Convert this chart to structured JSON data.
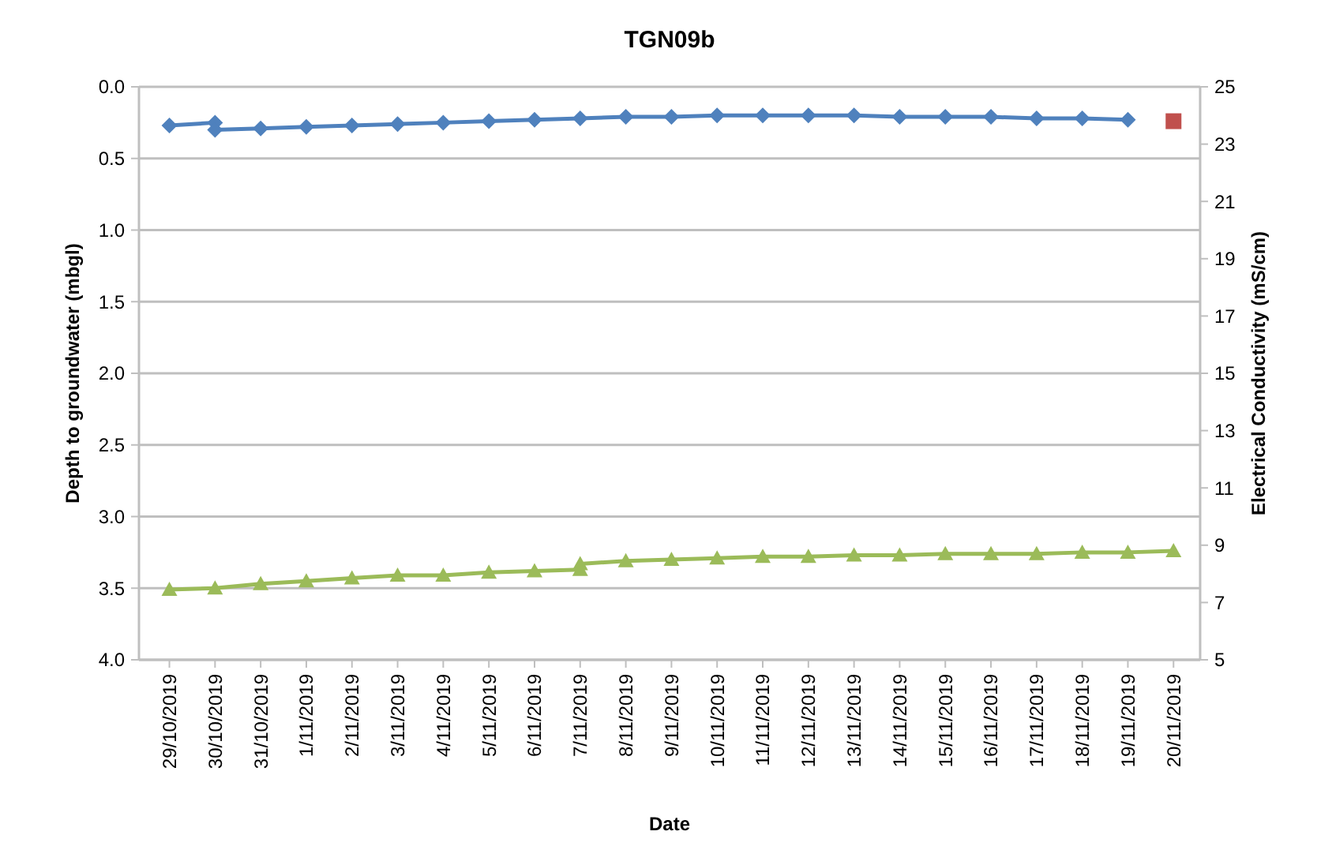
{
  "chart_data": {
    "type": "line",
    "title": "TGN09b",
    "xlabel": "Date",
    "ylabel": "Depth to groundwater (mbgl)",
    "y2label": "Electrical Conductivity (mS/cm)",
    "xlim": [
      "2019-10-28T08:00",
      "2019-11-20T14:00"
    ],
    "xticks": [
      {
        "value": "2019-10-29",
        "label": "29/10/2019"
      },
      {
        "value": "2019-10-30",
        "label": "30/10/2019"
      },
      {
        "value": "2019-10-31",
        "label": "31/10/2019"
      },
      {
        "value": "2019-11-01",
        "label": "1/11/2019"
      },
      {
        "value": "2019-11-02",
        "label": "2/11/2019"
      },
      {
        "value": "2019-11-03",
        "label": "3/11/2019"
      },
      {
        "value": "2019-11-04",
        "label": "4/11/2019"
      },
      {
        "value": "2019-11-05",
        "label": "5/11/2019"
      },
      {
        "value": "2019-11-06",
        "label": "6/11/2019"
      },
      {
        "value": "2019-11-07",
        "label": "7/11/2019"
      },
      {
        "value": "2019-11-08",
        "label": "8/11/2019"
      },
      {
        "value": "2019-11-09",
        "label": "9/11/2019"
      },
      {
        "value": "2019-11-10",
        "label": "10/11/2019"
      },
      {
        "value": "2019-11-11",
        "label": "11/11/2019"
      },
      {
        "value": "2019-11-12",
        "label": "12/11/2019"
      },
      {
        "value": "2019-11-13",
        "label": "13/11/2019"
      },
      {
        "value": "2019-11-14",
        "label": "14/11/2019"
      },
      {
        "value": "2019-11-15",
        "label": "15/11/2019"
      },
      {
        "value": "2019-11-16",
        "label": "16/11/2019"
      },
      {
        "value": "2019-11-17",
        "label": "17/11/2019"
      },
      {
        "value": "2019-11-18",
        "label": "18/11/2019"
      },
      {
        "value": "2019-11-19",
        "label": "19/11/2019"
      },
      {
        "value": "2019-11-20",
        "label": "20/11/2019"
      }
    ],
    "ylim": [
      4,
      0
    ],
    "yticks": [
      {
        "value": 0,
        "label": "0.0"
      },
      {
        "value": 0.5,
        "label": "0.5"
      },
      {
        "value": 1,
        "label": "1.0"
      },
      {
        "value": 1.5,
        "label": "1.5"
      },
      {
        "value": 2,
        "label": "2.0"
      },
      {
        "value": 2.5,
        "label": "2.5"
      },
      {
        "value": 3,
        "label": "3.0"
      },
      {
        "value": 3.5,
        "label": "3.5"
      },
      {
        "value": 4,
        "label": "4.0"
      }
    ],
    "y2lim": [
      5,
      25
    ],
    "y2ticks": [
      5,
      7,
      9,
      11,
      13,
      15,
      17,
      19,
      21,
      23,
      25
    ],
    "grid": "y",
    "series": [
      {
        "color": "#4f81bd",
        "marker": "diamond",
        "x": [
          "2019-10-29",
          "2019-10-30",
          "2019-10-30",
          "2019-10-31",
          "2019-11-01",
          "2019-11-02",
          "2019-11-03",
          "2019-11-04",
          "2019-11-05",
          "2019-11-06",
          "2019-11-07",
          "2019-11-08",
          "2019-11-09",
          "2019-11-10",
          "2019-11-11",
          "2019-11-12",
          "2019-11-13",
          "2019-11-14",
          "2019-11-15",
          "2019-11-16",
          "2019-11-17",
          "2019-11-18",
          "2019-11-19"
        ],
        "values": [
          0.27,
          0.25,
          0.3,
          0.29,
          0.28,
          0.27,
          0.26,
          0.25,
          0.24,
          0.23,
          0.22,
          0.21,
          0.21,
          0.2,
          0.2,
          0.2,
          0.2,
          0.21,
          0.21,
          0.21,
          0.22,
          0.22,
          0.23
        ]
      },
      {
        "type": "scatter",
        "color": "#c0504d",
        "marker": "square",
        "x": [
          "2019-11-20"
        ],
        "values": [
          0.24
        ]
      },
      {
        "axis": "y2",
        "color": "#9bbb59",
        "marker": "triangle",
        "x": [
          "2019-10-29",
          "2019-10-30",
          "2019-10-31",
          "2019-11-01",
          "2019-11-02",
          "2019-11-03",
          "2019-11-04",
          "2019-11-05",
          "2019-11-06",
          "2019-11-07",
          "2019-11-07",
          "2019-11-08",
          "2019-11-09",
          "2019-11-10",
          "2019-11-11",
          "2019-11-12",
          "2019-11-13",
          "2019-11-14",
          "2019-11-15",
          "2019-11-16",
          "2019-11-17",
          "2019-11-18",
          "2019-11-19",
          "2019-11-20"
        ],
        "values": [
          7.45,
          7.5,
          7.65,
          7.75,
          7.85,
          7.95,
          7.95,
          8.05,
          8.1,
          8.15,
          8.35,
          8.45,
          8.5,
          8.55,
          8.6,
          8.6,
          8.65,
          8.65,
          8.7,
          8.7,
          8.7,
          8.75,
          8.75,
          8.8
        ]
      }
    ]
  }
}
